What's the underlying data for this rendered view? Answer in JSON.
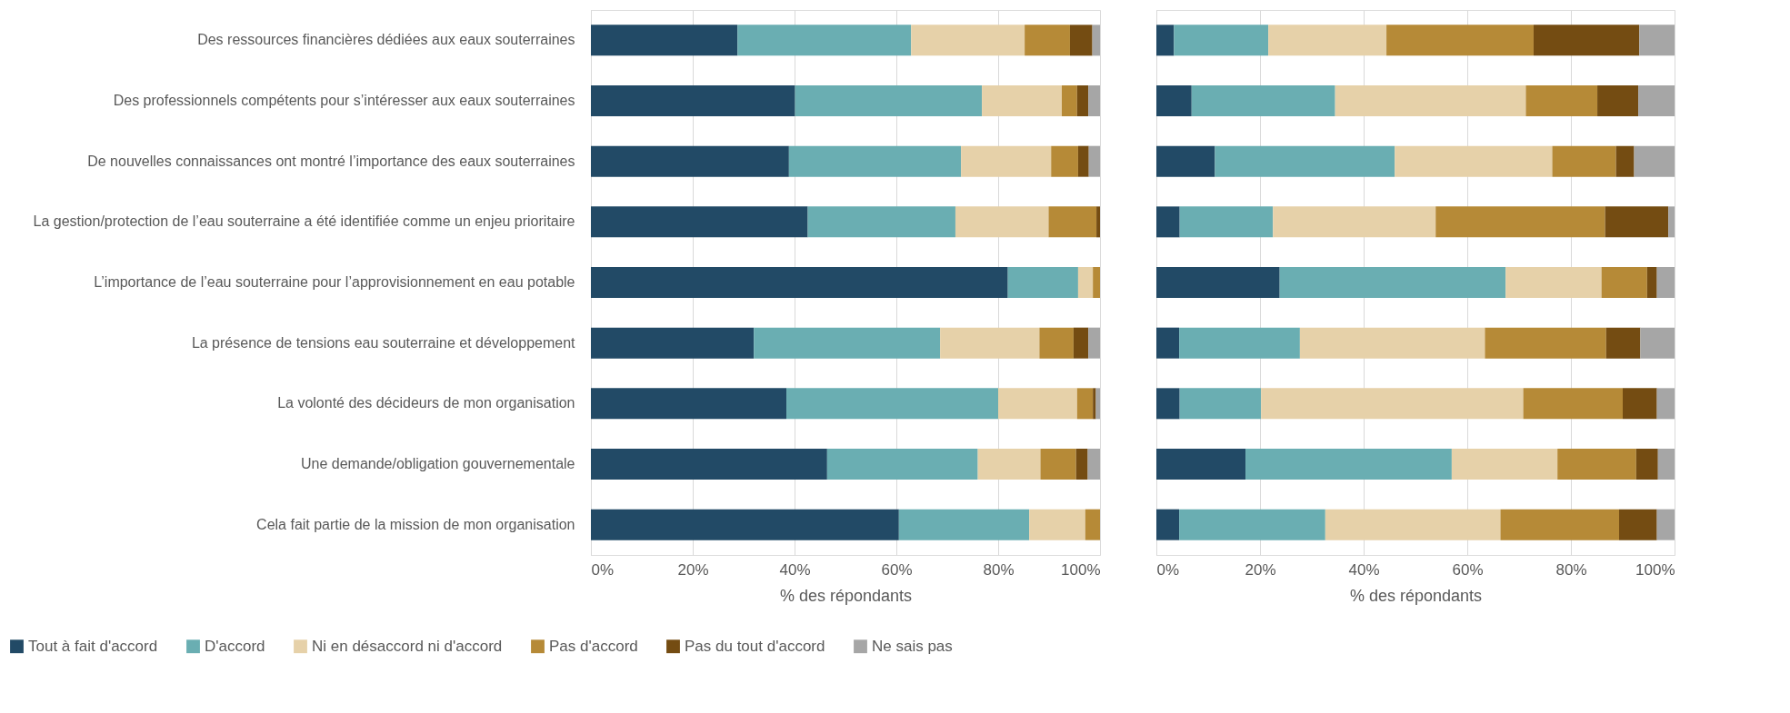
{
  "chart_data": [
    {
      "type": "bar",
      "orientation": "horizontal",
      "stacked": true,
      "xlabel": "% des répondants",
      "legend": "bottom left",
      "grid": "x",
      "categories": [
        "Des ressources financières dédiées aux eaux souterraines",
        "Des professionnels compétents pour s’intéresser aux eaux souterraines",
        "De nouvelles connaissances ont montré l’importance des eaux souterraines",
        "La gestion/protection de l’eau souterraine a été identifiée comme un enjeu prioritaire",
        "L’importance de l’eau souterraine pour l’approvisionnement en eau potable",
        "La présence de tensions eau souterraine et développement",
        "La volonté des décideurs de mon organisation",
        "Une demande/obligation gouvernementale",
        "Cela fait partie de la mission de mon organisation"
      ],
      "xlim": [
        0,
        100
      ],
      "xticks": [
        {
          "value": 0,
          "label": "0%"
        },
        {
          "value": 20,
          "label": "20%"
        },
        {
          "value": 40,
          "label": "40%"
        },
        {
          "value": 60,
          "label": "60%"
        },
        {
          "value": 80,
          "label": "80%"
        },
        {
          "value": 100,
          "label": "100%"
        }
      ],
      "series": [
        {
          "name": "Tout à fait d'accord",
          "color": "#224a66",
          "values": [
            28.8,
            40.1,
            38.9,
            42.6,
            81.9,
            32.0,
            38.4,
            46.4,
            60.5
          ]
        },
        {
          "name": "D'accord",
          "color": "#6aaeb2",
          "values": [
            34.1,
            36.7,
            33.8,
            29.0,
            13.8,
            36.6,
            41.6,
            29.6,
            25.6
          ]
        },
        {
          "name": "Ni en désaccord ni d'accord",
          "color": "#e6d1a9",
          "values": [
            22.3,
            15.7,
            17.7,
            18.3,
            2.9,
            19.5,
            15.5,
            12.3,
            11.0
          ]
        },
        {
          "name": "Pas d'accord",
          "color": "#b68a37",
          "values": [
            8.9,
            3.0,
            5.3,
            9.4,
            1.4,
            6.7,
            3.1,
            7.0,
            2.9
          ]
        },
        {
          "name": "Pas du tout d'accord",
          "color": "#744c12",
          "values": [
            4.4,
            2.2,
            2.1,
            0.7,
            0,
            2.9,
            0.6,
            2.3,
            0
          ]
        },
        {
          "name": "Ne sais pas",
          "color": "#a6a6a6",
          "values": [
            1.5,
            2.3,
            2.2,
            0,
            0,
            2.3,
            0.8,
            2.4,
            0
          ]
        }
      ]
    },
    {
      "type": "bar",
      "orientation": "horizontal",
      "stacked": true,
      "xlabel": "% des répondants",
      "grid": "x",
      "tick_labels": "x",
      "categories": [
        "Des ressources financières dédiées aux eaux souterraines",
        "Des professionnels compétents pour s’intéresser aux eaux souterraines",
        "De nouvelles connaissances ont montré l’importance des eaux souterraines",
        "La gestion/protection de l’eau souterraine a été identifiée comme un enjeu prioritaire",
        "L’importance de l’eau souterraine pour l’approvisionnement en eau potable",
        "La présence de tensions eau souterraine et développement",
        "La volonté des décideurs de mon organisation",
        "Une demande/obligation gouvernementale",
        "Cela fait partie de la mission de mon organisation"
      ],
      "xlim": [
        0,
        100
      ],
      "xticks": [
        {
          "value": 0,
          "label": "0%"
        },
        {
          "value": 20,
          "label": "20%"
        },
        {
          "value": 40,
          "label": "40%"
        },
        {
          "value": 60,
          "label": "60%"
        },
        {
          "value": 80,
          "label": "80%"
        },
        {
          "value": 100,
          "label": "100%"
        }
      ],
      "series": [
        {
          "name": "Tout à fait d'accord",
          "color": "#224a66",
          "values": [
            3.4,
            6.8,
            11.3,
            4.5,
            23.8,
            4.4,
            4.5,
            17.2,
            4.4
          ]
        },
        {
          "name": "D'accord",
          "color": "#6aaeb2",
          "values": [
            18.2,
            27.7,
            34.7,
            18.0,
            43.6,
            23.3,
            15.7,
            39.8,
            28.2
          ]
        },
        {
          "name": "Ni en désaccord ni d'accord",
          "color": "#e6d1a9",
          "values": [
            22.8,
            36.8,
            30.4,
            31.4,
            18.5,
            35.7,
            50.6,
            20.4,
            33.8
          ]
        },
        {
          "name": "Pas d'accord",
          "color": "#b68a37",
          "values": [
            28.4,
            13.8,
            12.3,
            32.7,
            8.8,
            23.4,
            19.2,
            15.2,
            22.9
          ]
        },
        {
          "name": "Pas du tout d'accord",
          "color": "#744c12",
          "values": [
            20.4,
            7.9,
            3.5,
            12.2,
            1.9,
            6.6,
            6.6,
            4.2,
            7.3
          ]
        },
        {
          "name": "Ne sais pas",
          "color": "#a6a6a6",
          "values": [
            6.8,
            7.0,
            7.8,
            1.2,
            3.4,
            6.6,
            3.4,
            3.2,
            3.4
          ]
        }
      ]
    }
  ]
}
